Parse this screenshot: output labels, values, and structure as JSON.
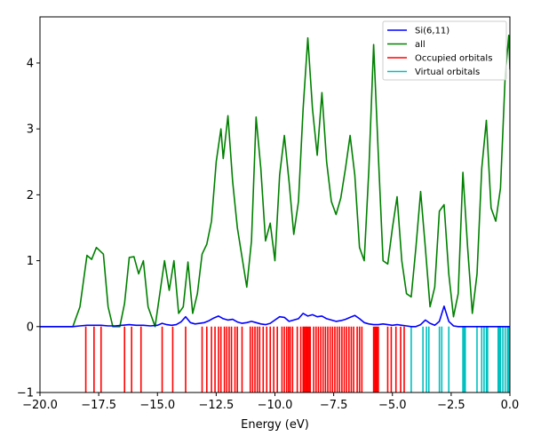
{
  "chart_data": {
    "type": "line",
    "title": "",
    "xlabel": "Energy (eV)",
    "ylabel": "",
    "xlim": [
      -20.0,
      0.0
    ],
    "ylim": [
      -1,
      4.7
    ],
    "x_ticks": [
      -20.0,
      -17.5,
      -15.0,
      -12.5,
      -10.0,
      -7.5,
      -5.0,
      -2.5,
      0.0
    ],
    "x_tick_labels": [
      "−20.0",
      "−17.5",
      "−15.0",
      "−12.5",
      "−10.0",
      "−7.5",
      "−5.0",
      "−2.5",
      "0.0"
    ],
    "y_ticks": [
      -1,
      0,
      1,
      2,
      3,
      4
    ],
    "y_tick_labels": [
      "−1",
      "0",
      "1",
      "2",
      "3",
      "4"
    ],
    "grid": false,
    "legend_placement": "top-right",
    "series": [
      {
        "name": "Si(6,11)",
        "color": "#0000ff",
        "x": [
          -20.0,
          -18.6,
          -18.3,
          -18.0,
          -17.7,
          -17.4,
          -17.1,
          -16.8,
          -16.5,
          -16.2,
          -15.9,
          -15.6,
          -15.3,
          -15.0,
          -14.8,
          -14.6,
          -14.4,
          -14.2,
          -14.0,
          -13.8,
          -13.6,
          -13.4,
          -13.2,
          -13.0,
          -12.8,
          -12.6,
          -12.4,
          -12.2,
          -12.0,
          -11.8,
          -11.6,
          -11.4,
          -11.2,
          -11.0,
          -10.8,
          -10.6,
          -10.4,
          -10.2,
          -10.0,
          -9.8,
          -9.6,
          -9.4,
          -9.2,
          -9.0,
          -8.8,
          -8.6,
          -8.4,
          -8.2,
          -8.0,
          -7.8,
          -7.6,
          -7.4,
          -7.2,
          -7.0,
          -6.8,
          -6.6,
          -6.4,
          -6.2,
          -6.0,
          -5.8,
          -5.6,
          -5.4,
          -5.2,
          -5.0,
          -4.8,
          -4.6,
          -4.4,
          -4.2,
          -4.0,
          -3.8,
          -3.6,
          -3.4,
          -3.2,
          -3.0,
          -2.8,
          -2.6,
          -2.4,
          -2.2,
          -2.0,
          -1.8,
          -1.6,
          -1.4,
          -1.2,
          -1.0,
          -0.8,
          -0.6,
          -0.4,
          -0.2,
          0.0
        ],
        "values": [
          0.0,
          0.0,
          0.01,
          0.02,
          0.02,
          0.02,
          0.01,
          0.01,
          0.02,
          0.03,
          0.02,
          0.02,
          0.01,
          0.02,
          0.05,
          0.03,
          0.02,
          0.03,
          0.07,
          0.15,
          0.06,
          0.04,
          0.05,
          0.06,
          0.09,
          0.13,
          0.16,
          0.12,
          0.1,
          0.11,
          0.07,
          0.05,
          0.06,
          0.08,
          0.06,
          0.04,
          0.03,
          0.05,
          0.1,
          0.15,
          0.14,
          0.08,
          0.1,
          0.12,
          0.2,
          0.16,
          0.18,
          0.15,
          0.16,
          0.12,
          0.1,
          0.08,
          0.09,
          0.11,
          0.14,
          0.17,
          0.12,
          0.06,
          0.04,
          0.03,
          0.03,
          0.04,
          0.03,
          0.02,
          0.03,
          0.02,
          0.01,
          0.0,
          0.0,
          0.03,
          0.1,
          0.05,
          0.02,
          0.08,
          0.31,
          0.08,
          0.01,
          0.0,
          0.0,
          0.0,
          0.0,
          0.0,
          0.0,
          0.0,
          0.0,
          0.0,
          0.0,
          0.0,
          0.0
        ]
      },
      {
        "name": "all",
        "color": "#008000",
        "x": [
          -20.0,
          -18.6,
          -18.3,
          -18.0,
          -17.8,
          -17.6,
          -17.3,
          -17.1,
          -16.9,
          -16.6,
          -16.4,
          -16.2,
          -16.0,
          -15.8,
          -15.6,
          -15.4,
          -15.1,
          -14.9,
          -14.7,
          -14.5,
          -14.3,
          -14.1,
          -13.9,
          -13.7,
          -13.5,
          -13.3,
          -13.1,
          -12.9,
          -12.7,
          -12.5,
          -12.3,
          -12.2,
          -12.0,
          -11.8,
          -11.6,
          -11.4,
          -11.2,
          -11.0,
          -10.8,
          -10.6,
          -10.4,
          -10.2,
          -10.0,
          -9.8,
          -9.6,
          -9.4,
          -9.2,
          -9.0,
          -8.8,
          -8.6,
          -8.4,
          -8.2,
          -8.0,
          -7.8,
          -7.6,
          -7.4,
          -7.2,
          -7.0,
          -6.8,
          -6.6,
          -6.4,
          -6.2,
          -6.0,
          -5.8,
          -5.6,
          -5.4,
          -5.2,
          -5.0,
          -4.8,
          -4.6,
          -4.4,
          -4.2,
          -4.0,
          -3.8,
          -3.6,
          -3.4,
          -3.2,
          -3.0,
          -2.8,
          -2.6,
          -2.4,
          -2.2,
          -2.0,
          -1.8,
          -1.6,
          -1.4,
          -1.2,
          -1.0,
          -0.8,
          -0.6,
          -0.4,
          -0.2,
          -0.05,
          0.0
        ],
        "values": [
          0.0,
          0.0,
          0.3,
          1.08,
          1.02,
          1.2,
          1.1,
          0.3,
          0.0,
          0.0,
          0.35,
          1.05,
          1.06,
          0.8,
          1.0,
          0.3,
          0.0,
          0.5,
          1.0,
          0.55,
          1.0,
          0.2,
          0.3,
          0.98,
          0.2,
          0.5,
          1.1,
          1.25,
          1.6,
          2.5,
          3.0,
          2.55,
          3.2,
          2.2,
          1.5,
          1.05,
          0.6,
          1.3,
          3.18,
          2.4,
          1.3,
          1.57,
          1.0,
          2.3,
          2.9,
          2.2,
          1.4,
          1.9,
          3.3,
          4.38,
          3.3,
          2.6,
          3.55,
          2.5,
          1.9,
          1.7,
          1.95,
          2.4,
          2.9,
          2.3,
          1.2,
          1.0,
          2.4,
          4.28,
          2.6,
          1.0,
          0.95,
          1.5,
          1.97,
          1.0,
          0.5,
          0.45,
          1.2,
          2.05,
          1.2,
          0.3,
          0.6,
          1.75,
          1.85,
          0.8,
          0.15,
          0.5,
          2.34,
          1.2,
          0.2,
          0.8,
          2.4,
          3.13,
          1.8,
          1.6,
          2.1,
          3.8,
          4.42,
          3.9
        ]
      },
      {
        "name": "Occupied orbitals",
        "color": "#ff0000",
        "type": "stick",
        "x": [
          -18.05,
          -17.7,
          -17.4,
          -16.4,
          -16.1,
          -15.7,
          -14.8,
          -14.35,
          -13.8,
          -13.1,
          -12.9,
          -12.7,
          -12.55,
          -12.4,
          -12.3,
          -12.15,
          -12.05,
          -11.95,
          -11.85,
          -11.7,
          -11.6,
          -11.4,
          -11.05,
          -10.95,
          -10.85,
          -10.75,
          -10.65,
          -10.5,
          -10.35,
          -10.2,
          -10.05,
          -9.9,
          -9.7,
          -9.6,
          -9.5,
          -9.42,
          -9.35,
          -9.25,
          -9.05,
          -8.9,
          -8.8,
          -8.75,
          -8.7,
          -8.65,
          -8.6,
          -8.55,
          -8.5,
          -8.35,
          -8.25,
          -8.15,
          -8.05,
          -7.95,
          -7.85,
          -7.75,
          -7.65,
          -7.55,
          -7.45,
          -7.35,
          -7.25,
          -7.15,
          -7.05,
          -6.95,
          -6.85,
          -6.75,
          -6.65,
          -6.5,
          -6.4,
          -6.3,
          -5.8,
          -5.75,
          -5.7,
          -5.65,
          -5.6,
          -5.2,
          -5.05,
          -4.85,
          -4.65,
          -4.5
        ],
        "values": [
          -1,
          -1,
          -1,
          -1,
          -1,
          -1,
          -1,
          -1,
          -1,
          -1,
          -1,
          -1,
          -1,
          -1,
          -1,
          -1,
          -1,
          -1,
          -1,
          -1,
          -1,
          -1,
          -1,
          -1,
          -1,
          -1,
          -1,
          -1,
          -1,
          -1,
          -1,
          -1,
          -1,
          -1,
          -1,
          -1,
          -1,
          -1,
          -1,
          -1,
          -1,
          -1,
          -1,
          -1,
          -1,
          -1,
          -1,
          -1,
          -1,
          -1,
          -1,
          -1,
          -1,
          -1,
          -1,
          -1,
          -1,
          -1,
          -1,
          -1,
          -1,
          -1,
          -1,
          -1,
          -1,
          -1,
          -1,
          -1,
          -1,
          -1,
          -1,
          -1,
          -1,
          -1,
          -1,
          -1,
          -1,
          -1
        ]
      },
      {
        "name": "Virtual orbitals",
        "color": "#00bfbf",
        "type": "stick",
        "x": [
          -4.2,
          -3.7,
          -3.55,
          -3.45,
          -3.0,
          -2.9,
          -2.6,
          -2.0,
          -1.95,
          -1.9,
          -1.4,
          -1.2,
          -1.1,
          -1.0,
          -0.95,
          -0.5,
          -0.45,
          -0.4,
          -0.3,
          -0.2,
          -0.1,
          -0.05
        ],
        "values": [
          -1,
          -1,
          -1,
          -1,
          -1,
          -1,
          -1,
          -1,
          -1,
          -1,
          -1,
          -1,
          -1,
          -1,
          -1,
          -1,
          -1,
          -1,
          -1,
          -1,
          -1,
          -1
        ]
      }
    ]
  }
}
